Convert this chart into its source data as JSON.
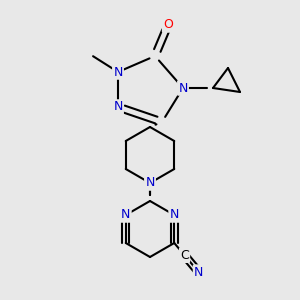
{
  "bg_color": "#e8e8e8",
  "bond_color": "#000000",
  "N_color": "#0000cc",
  "O_color": "#ff0000",
  "lw": 1.5,
  "fs": 9.0,
  "dpi": 100,
  "xlim": [
    0,
    300
  ],
  "ylim": [
    0,
    300
  ]
}
